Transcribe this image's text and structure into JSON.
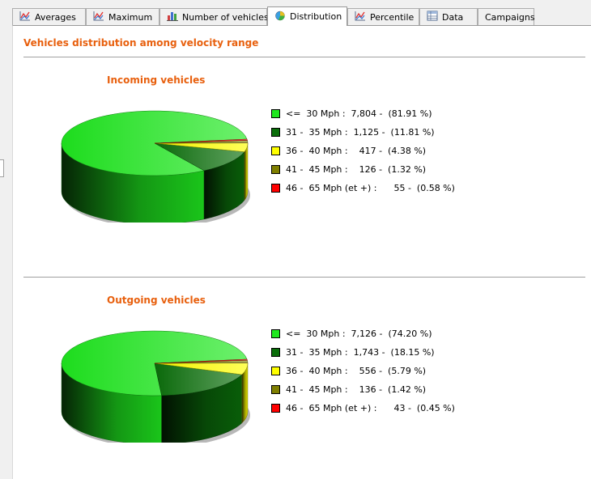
{
  "tabs": [
    {
      "label": "Averages",
      "icon": "line-chart-icon",
      "active": false
    },
    {
      "label": "Maximum",
      "icon": "line-chart-icon",
      "active": false
    },
    {
      "label": "Number of vehicles",
      "icon": "bar-chart-icon",
      "active": false
    },
    {
      "label": "Distribution",
      "icon": "pie-chart-icon",
      "active": true
    },
    {
      "label": "Percentile",
      "icon": "line-chart-icon",
      "active": false
    },
    {
      "label": "Data",
      "icon": "table-icon",
      "active": false
    },
    {
      "label": "Campaigns",
      "icon": "",
      "active": false
    }
  ],
  "page_title": "Vehicles distribution among velocity range",
  "colors": {
    "accent": "#e8600e",
    "slices": [
      "#1ee81e",
      "#0a6e0a",
      "#ffff00",
      "#7f7f00",
      "#ff0000"
    ]
  },
  "chart_data": [
    {
      "type": "pie",
      "title": "Incoming vehicles",
      "categories": [
        "<= 30 Mph",
        "31 - 35 Mph",
        "36 - 40 Mph",
        "41 - 45 Mph",
        "46 - 65 Mph (et +)"
      ],
      "values": [
        7804,
        1125,
        417,
        126,
        55
      ],
      "percentages": [
        81.91,
        11.81,
        4.38,
        1.32,
        0.58
      ],
      "legend_text": [
        "<=  30 Mph :  7,804 -  (81.91 %)",
        "31 -  35 Mph :  1,125 -  (11.81 %)",
        "36 -  40 Mph :    417 -  (4.38 %)",
        "41 -  45 Mph :    126 -  (1.32 %)",
        "46 -  65 Mph (et +) :      55 -  (0.58 %)"
      ],
      "legend": "right"
    },
    {
      "type": "pie",
      "title": "Outgoing vehicles",
      "categories": [
        "<= 30 Mph",
        "31 - 35 Mph",
        "36 - 40 Mph",
        "41 - 45 Mph",
        "46 - 65 Mph (et +)"
      ],
      "values": [
        7126,
        1743,
        556,
        136,
        43
      ],
      "percentages": [
        74.2,
        18.15,
        5.79,
        1.42,
        0.45
      ],
      "legend_text": [
        "<=  30 Mph :  7,126 -  (74.20 %)",
        "31 -  35 Mph :  1,743 -  (18.15 %)",
        "36 -  40 Mph :    556 -  (5.79 %)",
        "41 -  45 Mph :    136 -  (1.42 %)",
        "46 -  65 Mph (et +) :      43 -  (0.45 %)"
      ],
      "legend": "right"
    }
  ]
}
